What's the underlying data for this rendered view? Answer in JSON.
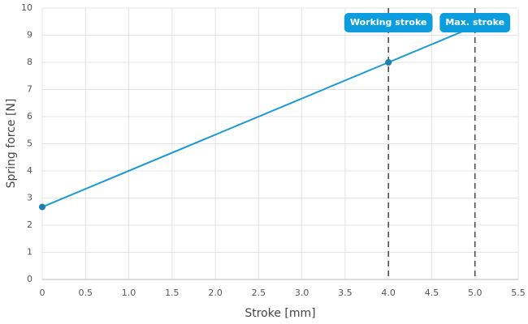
{
  "chart_data": {
    "type": "line",
    "x_label": "Stroke [mm]",
    "y_label": "Spring force [N]",
    "series": [
      {
        "name": "Spring force",
        "color": "#1a9ad6",
        "x": [
          0,
          4,
          5
        ],
        "values": [
          2.67,
          8,
          9.33
        ]
      }
    ],
    "xlim": [
      0,
      5.5
    ],
    "xticks": [
      0,
      0.5,
      {
        "value": 1,
        "label": "1.0"
      },
      1.5,
      {
        "value": 2,
        "label": "2.0"
      },
      2.5,
      {
        "value": 3,
        "label": "3.0"
      },
      3.5,
      {
        "value": 4,
        "label": "4.0"
      },
      4.5,
      {
        "value": 5,
        "label": "5.0"
      },
      5.5
    ],
    "ylim": [
      0,
      10
    ],
    "yticks": [
      0,
      1,
      2,
      3,
      4,
      5,
      6,
      7,
      8,
      9,
      10
    ],
    "grid": true,
    "annotations": [
      {
        "x": 4,
        "label": "Working stroke"
      },
      {
        "x": 5,
        "label": "Max. stroke"
      }
    ]
  }
}
